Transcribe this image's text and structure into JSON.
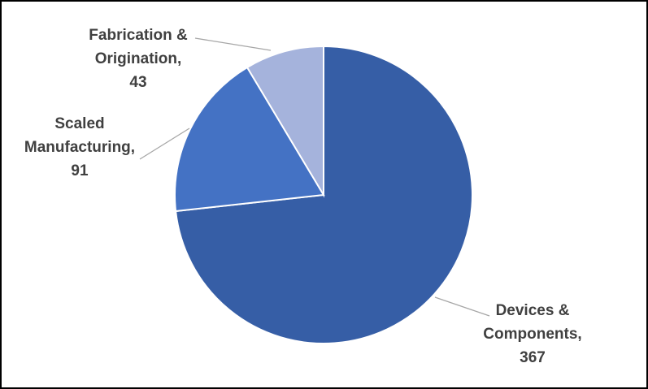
{
  "chart_data": {
    "type": "pie",
    "categories": [
      "Devices & Components,",
      "Scaled Manufacturing,",
      "Fabrication & Origination,"
    ],
    "values": [
      367,
      91,
      43
    ],
    "colors": [
      "#365ea6",
      "#4472c4",
      "#a5b3dc"
    ]
  }
}
